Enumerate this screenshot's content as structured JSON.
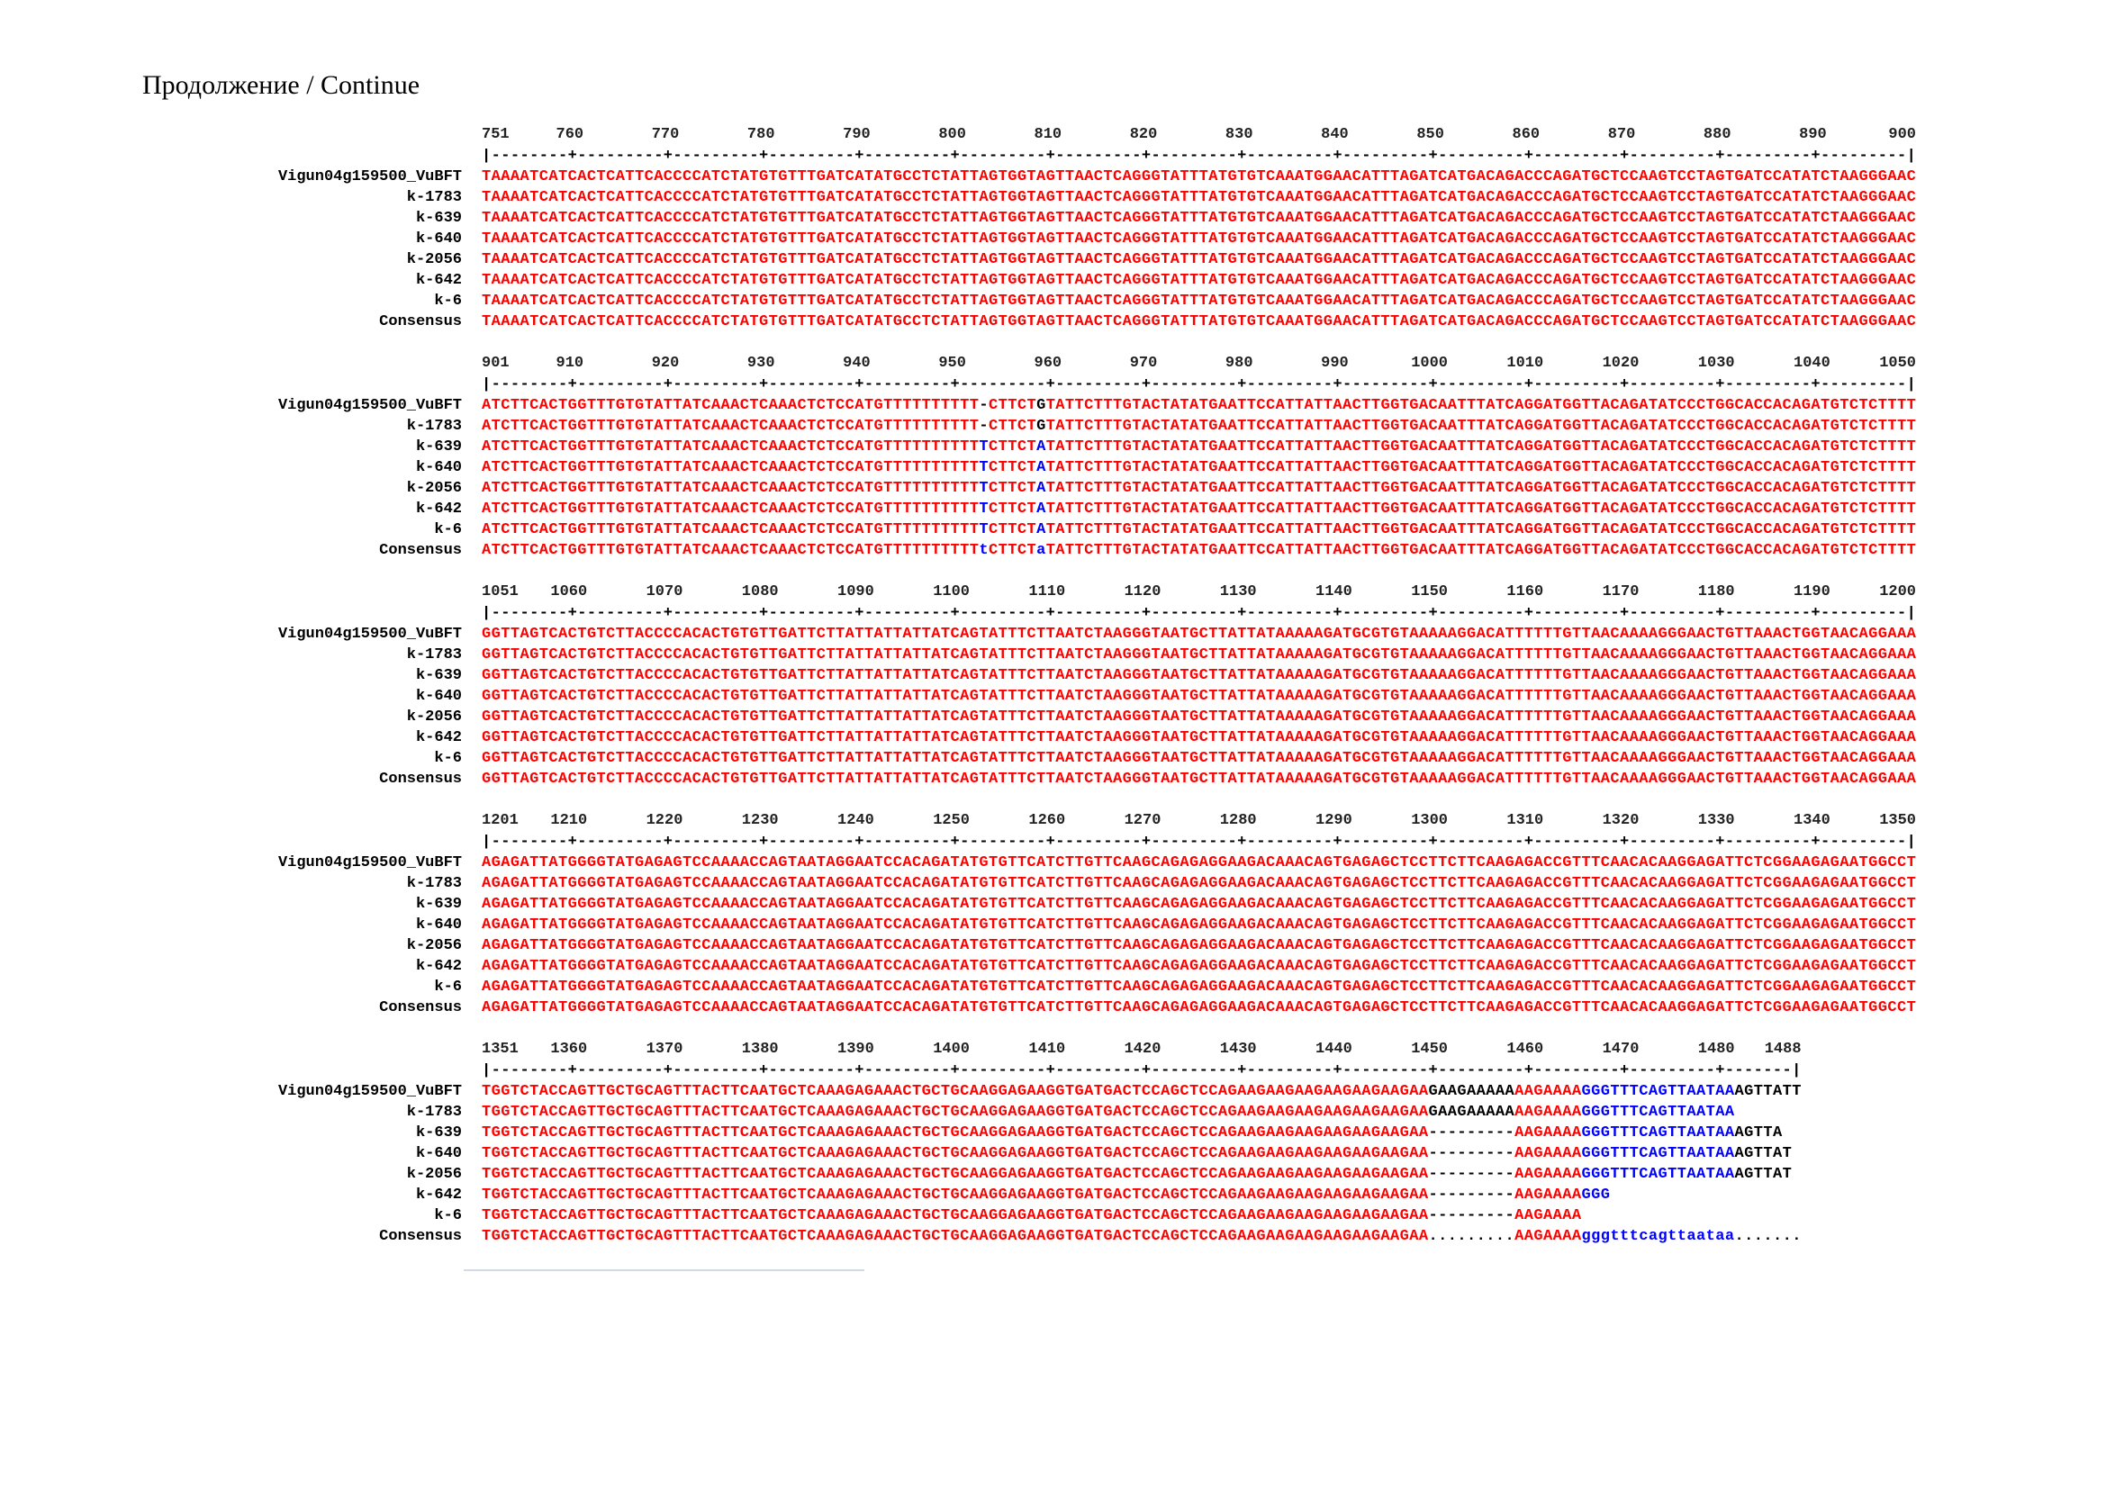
{
  "header": "Продолжение / Continue",
  "colors": {
    "r": "#ff0000",
    "b": "#0000ff",
    "k": "#000000"
  },
  "names": [
    "Vigun04g159500_VuBFT",
    "k-1783",
    "k-639",
    "k-640",
    "k-2056",
    "k-642",
    "k-6",
    "Consensus"
  ],
  "blocks": [
    {
      "start": 751,
      "end": 900,
      "tick_labels": [
        "751",
        "760",
        "770",
        "780",
        "790",
        "800",
        "810",
        "820",
        "830",
        "840",
        "850",
        "860",
        "870",
        "880",
        "890",
        "900"
      ],
      "rows": [
        [
          [
            "TAAAATCATCACTCATTCACCCCATCTATGTGTTTGATCATATGCCTCTATTAGTGGTAGTTAACTCAGGGTATTTATGTGTCAAATGGAACATTTAGATCATGACAGACCCAGATGCTCCAAGTCCTAGTGATCCATATCTAAGGGAAC",
            "r"
          ]
        ],
        [
          [
            "TAAAATCATCACTCATTCACCCCATCTATGTGTTTGATCATATGCCTCTATTAGTGGTAGTTAACTCAGGGTATTTATGTGTCAAATGGAACATTTAGATCATGACAGACCCAGATGCTCCAAGTCCTAGTGATCCATATCTAAGGGAAC",
            "r"
          ]
        ],
        [
          [
            "TAAAATCATCACTCATTCACCCCATCTATGTGTTTGATCATATGCCTCTATTAGTGGTAGTTAACTCAGGGTATTTATGTGTCAAATGGAACATTTAGATCATGACAGACCCAGATGCTCCAAGTCCTAGTGATCCATATCTAAGGGAAC",
            "r"
          ]
        ],
        [
          [
            "TAAAATCATCACTCATTCACCCCATCTATGTGTTTGATCATATGCCTCTATTAGTGGTAGTTAACTCAGGGTATTTATGTGTCAAATGGAACATTTAGATCATGACAGACCCAGATGCTCCAAGTCCTAGTGATCCATATCTAAGGGAAC",
            "r"
          ]
        ],
        [
          [
            "TAAAATCATCACTCATTCACCCCATCTATGTGTTTGATCATATGCCTCTATTAGTGGTAGTTAACTCAGGGTATTTATGTGTCAAATGGAACATTTAGATCATGACAGACCCAGATGCTCCAAGTCCTAGTGATCCATATCTAAGGGAAC",
            "r"
          ]
        ],
        [
          [
            "TAAAATCATCACTCATTCACCCCATCTATGTGTTTGATCATATGCCTCTATTAGTGGTAGTTAACTCAGGGTATTTATGTGTCAAATGGAACATTTAGATCATGACAGACCCAGATGCTCCAAGTCCTAGTGATCCATATCTAAGGGAAC",
            "r"
          ]
        ],
        [
          [
            "TAAAATCATCACTCATTCACCCCATCTATGTGTTTGATCATATGCCTCTATTAGTGGTAGTTAACTCAGGGTATTTATGTGTCAAATGGAACATTTAGATCATGACAGACCCAGATGCTCCAAGTCCTAGTGATCCATATCTAAGGGAAC",
            "r"
          ]
        ],
        [
          [
            "TAAAATCATCACTCATTCACCCCATCTATGTGTTTGATCATATGCCTCTATTAGTGGTAGTTAACTCAGGGTATTTATGTGTCAAATGGAACATTTAGATCATGACAGACCCAGATGCTCCAAGTCCTAGTGATCCATATCTAAGGGAAC",
            "r"
          ]
        ]
      ]
    },
    {
      "start": 901,
      "end": 1050,
      "tick_labels": [
        "901",
        "910",
        "920",
        "930",
        "940",
        "950",
        "960",
        "970",
        "980",
        "990",
        "1000",
        "1010",
        "1020",
        "1030",
        "1040",
        "1050"
      ],
      "rows": [
        [
          [
            "ATCTTCACTGGTTTGTGTATTATCAAACTCAAACTCTCCATGTTTTTTTTTT",
            "r"
          ],
          [
            "-",
            "k"
          ],
          [
            "CTTCT",
            "r"
          ],
          [
            "G",
            "k"
          ],
          [
            "TATTCTTTGTACTATATGAATTCCATTATTAACTTGGTGACAATTTATCAGGATGGTTACAGATATCCCTGGCACCACAGATGTCTCTTTT",
            "r"
          ]
        ],
        [
          [
            "ATCTTCACTGGTTTGTGTATTATCAAACTCAAACTCTCCATGTTTTTTTTTT",
            "r"
          ],
          [
            "-",
            "k"
          ],
          [
            "CTTCT",
            "r"
          ],
          [
            "G",
            "k"
          ],
          [
            "TATTCTTTGTACTATATGAATTCCATTATTAACTTGGTGACAATTTATCAGGATGGTTACAGATATCCCTGGCACCACAGATGTCTCTTTT",
            "r"
          ]
        ],
        [
          [
            "ATCTTCACTGGTTTGTGTATTATCAAACTCAAACTCTCCATGTTTTTTTTTT",
            "r"
          ],
          [
            "T",
            "b"
          ],
          [
            "CTTCT",
            "r"
          ],
          [
            "A",
            "b"
          ],
          [
            "TATTCTTTGTACTATATGAATTCCATTATTAACTTGGTGACAATTTATCAGGATGGTTACAGATATCCCTGGCACCACAGATGTCTCTTTT",
            "r"
          ]
        ],
        [
          [
            "ATCTTCACTGGTTTGTGTATTATCAAACTCAAACTCTCCATGTTTTTTTTTT",
            "r"
          ],
          [
            "T",
            "b"
          ],
          [
            "CTTCT",
            "r"
          ],
          [
            "A",
            "b"
          ],
          [
            "TATTCTTTGTACTATATGAATTCCATTATTAACTTGGTGACAATTTATCAGGATGGTTACAGATATCCCTGGCACCACAGATGTCTCTTTT",
            "r"
          ]
        ],
        [
          [
            "ATCTTCACTGGTTTGTGTATTATCAAACTCAAACTCTCCATGTTTTTTTTTT",
            "r"
          ],
          [
            "T",
            "b"
          ],
          [
            "CTTCT",
            "r"
          ],
          [
            "A",
            "b"
          ],
          [
            "TATTCTTTGTACTATATGAATTCCATTATTAACTTGGTGACAATTTATCAGGATGGTTACAGATATCCCTGGCACCACAGATGTCTCTTTT",
            "r"
          ]
        ],
        [
          [
            "ATCTTCACTGGTTTGTGTATTATCAAACTCAAACTCTCCATGTTTTTTTTTT",
            "r"
          ],
          [
            "T",
            "b"
          ],
          [
            "CTTCT",
            "r"
          ],
          [
            "A",
            "b"
          ],
          [
            "TATTCTTTGTACTATATGAATTCCATTATTAACTTGGTGACAATTTATCAGGATGGTTACAGATATCCCTGGCACCACAGATGTCTCTTTT",
            "r"
          ]
        ],
        [
          [
            "ATCTTCACTGGTTTGTGTATTATCAAACTCAAACTCTCCATGTTTTTTTTTT",
            "r"
          ],
          [
            "T",
            "b"
          ],
          [
            "CTTCT",
            "r"
          ],
          [
            "A",
            "b"
          ],
          [
            "TATTCTTTGTACTATATGAATTCCATTATTAACTTGGTGACAATTTATCAGGATGGTTACAGATATCCCTGGCACCACAGATGTCTCTTTT",
            "r"
          ]
        ],
        [
          [
            "ATCTTCACTGGTTTGTGTATTATCAAACTCAAACTCTCCATGTTTTTTTTTT",
            "r"
          ],
          [
            "t",
            "b"
          ],
          [
            "CTTCT",
            "r"
          ],
          [
            "a",
            "b"
          ],
          [
            "TATTCTTTGTACTATATGAATTCCATTATTAACTTGGTGACAATTTATCAGGATGGTTACAGATATCCCTGGCACCACAGATGTCTCTTTT",
            "r"
          ]
        ]
      ]
    },
    {
      "start": 1051,
      "end": 1200,
      "tick_labels": [
        "1051",
        "1060",
        "1070",
        "1080",
        "1090",
        "1100",
        "1110",
        "1120",
        "1130",
        "1140",
        "1150",
        "1160",
        "1170",
        "1180",
        "1190",
        "1200"
      ],
      "rows": [
        [
          [
            "GGTTAGTCACTGTCTTACCCCACACTGTGTTGATTCTTATTATTATTATCAGTATTTCTTAATCTAAGGGTAATGCTTATTATAAAAAGATGCGTGTAAAAAGGACATTTTTTGTTAACAAAAGGGAACTGTTAAACTGGTAACAGGAAA",
            "r"
          ]
        ],
        [
          [
            "GGTTAGTCACTGTCTTACCCCACACTGTGTTGATTCTTATTATTATTATCAGTATTTCTTAATCTAAGGGTAATGCTTATTATAAAAAGATGCGTGTAAAAAGGACATTTTTTGTTAACAAAAGGGAACTGTTAAACTGGTAACAGGAAA",
            "r"
          ]
        ],
        [
          [
            "GGTTAGTCACTGTCTTACCCCACACTGTGTTGATTCTTATTATTATTATCAGTATTTCTTAATCTAAGGGTAATGCTTATTATAAAAAGATGCGTGTAAAAAGGACATTTTTTGTTAACAAAAGGGAACTGTTAAACTGGTAACAGGAAA",
            "r"
          ]
        ],
        [
          [
            "GGTTAGTCACTGTCTTACCCCACACTGTGTTGATTCTTATTATTATTATCAGTATTTCTTAATCTAAGGGTAATGCTTATTATAAAAAGATGCGTGTAAAAAGGACATTTTTTGTTAACAAAAGGGAACTGTTAAACTGGTAACAGGAAA",
            "r"
          ]
        ],
        [
          [
            "GGTTAGTCACTGTCTTACCCCACACTGTGTTGATTCTTATTATTATTATCAGTATTTCTTAATCTAAGGGTAATGCTTATTATAAAAAGATGCGTGTAAAAAGGACATTTTTTGTTAACAAAAGGGAACTGTTAAACTGGTAACAGGAAA",
            "r"
          ]
        ],
        [
          [
            "GGTTAGTCACTGTCTTACCCCACACTGTGTTGATTCTTATTATTATTATCAGTATTTCTTAATCTAAGGGTAATGCTTATTATAAAAAGATGCGTGTAAAAAGGACATTTTTTGTTAACAAAAGGGAACTGTTAAACTGGTAACAGGAAA",
            "r"
          ]
        ],
        [
          [
            "GGTTAGTCACTGTCTTACCCCACACTGTGTTGATTCTTATTATTATTATCAGTATTTCTTAATCTAAGGGTAATGCTTATTATAAAAAGATGCGTGTAAAAAGGACATTTTTTGTTAACAAAAGGGAACTGTTAAACTGGTAACAGGAAA",
            "r"
          ]
        ],
        [
          [
            "GGTTAGTCACTGTCTTACCCCACACTGTGTTGATTCTTATTATTATTATCAGTATTTCTTAATCTAAGGGTAATGCTTATTATAAAAAGATGCGTGTAAAAAGGACATTTTTTGTTAACAAAAGGGAACTGTTAAACTGGTAACAGGAAA",
            "r"
          ]
        ]
      ]
    },
    {
      "start": 1201,
      "end": 1350,
      "tick_labels": [
        "1201",
        "1210",
        "1220",
        "1230",
        "1240",
        "1250",
        "1260",
        "1270",
        "1280",
        "1290",
        "1300",
        "1310",
        "1320",
        "1330",
        "1340",
        "1350"
      ],
      "rows": [
        [
          [
            "AGAGATTATGGGGTATGAGAGTCCAAAACCAGTAATAGGAATCCACAGATATGTGTTCATCTTGTTCAAGCAGAGAGGAAGACAAACAGTGAGAGCTCCTTCTTCAAGAGACCGTTTCAACACAAGGAGATTCTCGGAAGAGAATGGCCT",
            "r"
          ]
        ],
        [
          [
            "AGAGATTATGGGGTATGAGAGTCCAAAACCAGTAATAGGAATCCACAGATATGTGTTCATCTTGTTCAAGCAGAGAGGAAGACAAACAGTGAGAGCTCCTTCTTCAAGAGACCGTTTCAACACAAGGAGATTCTCGGAAGAGAATGGCCT",
            "r"
          ]
        ],
        [
          [
            "AGAGATTATGGGGTATGAGAGTCCAAAACCAGTAATAGGAATCCACAGATATGTGTTCATCTTGTTCAAGCAGAGAGGAAGACAAACAGTGAGAGCTCCTTCTTCAAGAGACCGTTTCAACACAAGGAGATTCTCGGAAGAGAATGGCCT",
            "r"
          ]
        ],
        [
          [
            "AGAGATTATGGGGTATGAGAGTCCAAAACCAGTAATAGGAATCCACAGATATGTGTTCATCTTGTTCAAGCAGAGAGGAAGACAAACAGTGAGAGCTCCTTCTTCAAGAGACCGTTTCAACACAAGGAGATTCTCGGAAGAGAATGGCCT",
            "r"
          ]
        ],
        [
          [
            "AGAGATTATGGGGTATGAGAGTCCAAAACCAGTAATAGGAATCCACAGATATGTGTTCATCTTGTTCAAGCAGAGAGGAAGACAAACAGTGAGAGCTCCTTCTTCAAGAGACCGTTTCAACACAAGGAGATTCTCGGAAGAGAATGGCCT",
            "r"
          ]
        ],
        [
          [
            "AGAGATTATGGGGTATGAGAGTCCAAAACCAGTAATAGGAATCCACAGATATGTGTTCATCTTGTTCAAGCAGAGAGGAAGACAAACAGTGAGAGCTCCTTCTTCAAGAGACCGTTTCAACACAAGGAGATTCTCGGAAGAGAATGGCCT",
            "r"
          ]
        ],
        [
          [
            "AGAGATTATGGGGTATGAGAGTCCAAAACCAGTAATAGGAATCCACAGATATGTGTTCATCTTGTTCAAGCAGAGAGGAAGACAAACAGTGAGAGCTCCTTCTTCAAGAGACCGTTTCAACACAAGGAGATTCTCGGAAGAGAATGGCCT",
            "r"
          ]
        ],
        [
          [
            "AGAGATTATGGGGTATGAGAGTCCAAAACCAGTAATAGGAATCCACAGATATGTGTTCATCTTGTTCAAGCAGAGAGGAAGACAAACAGTGAGAGCTCCTTCTTCAAGAGACCGTTTCAACACAAGGAGATTCTCGGAAGAGAATGGCCT",
            "r"
          ]
        ]
      ]
    },
    {
      "start": 1351,
      "end": 1488,
      "tick_labels": [
        "1351",
        "1360",
        "1370",
        "1380",
        "1390",
        "1400",
        "1410",
        "1420",
        "1430",
        "1440",
        "1450",
        "1460",
        "1470",
        "1480",
        "1488"
      ],
      "rows": [
        [
          [
            "TGGTCTACCAGTTGCTGCAGTTTACTTCAATGCTCAAAGAGAAACTGCTGCAAGGAGAAGGTGATGACTCCAGCTCCAGAAGAAGAAGAAGAAGAAGAA",
            "r"
          ],
          [
            "GAAGAAAAA",
            "k"
          ],
          [
            "AAGAAAA",
            "r"
          ],
          [
            "GGGTTTCAGTTAATAA",
            "b"
          ],
          [
            "AGTTATT",
            "k"
          ]
        ],
        [
          [
            "TGGTCTACCAGTTGCTGCAGTTTACTTCAATGCTCAAAGAGAAACTGCTGCAAGGAGAAGGTGATGACTCCAGCTCCAGAAGAAGAAGAAGAAGAAGAA",
            "r"
          ],
          [
            "GAAGAAAAA",
            "k"
          ],
          [
            "AAGAAAA",
            "r"
          ],
          [
            "GGGTTTCAGTTAATAA",
            "b"
          ]
        ],
        [
          [
            "TGGTCTACCAGTTGCTGCAGTTTACTTCAATGCTCAAAGAGAAACTGCTGCAAGGAGAAGGTGATGACTCCAGCTCCAGAAGAAGAAGAAGAAGAAGAA",
            "r"
          ],
          [
            "---------",
            "k"
          ],
          [
            "AAGAAAA",
            "r"
          ],
          [
            "GGGTTTCAGTTAATAA",
            "b"
          ],
          [
            "AGTTA",
            "k"
          ]
        ],
        [
          [
            "TGGTCTACCAGTTGCTGCAGTTTACTTCAATGCTCAAAGAGAAACTGCTGCAAGGAGAAGGTGATGACTCCAGCTCCAGAAGAAGAAGAAGAAGAAGAA",
            "r"
          ],
          [
            "---------",
            "k"
          ],
          [
            "AAGAAAA",
            "r"
          ],
          [
            "GGGTTTCAGTTAATAA",
            "b"
          ],
          [
            "AGTTAT",
            "k"
          ]
        ],
        [
          [
            "TGGTCTACCAGTTGCTGCAGTTTACTTCAATGCTCAAAGAGAAACTGCTGCAAGGAGAAGGTGATGACTCCAGCTCCAGAAGAAGAAGAAGAAGAAGAA",
            "r"
          ],
          [
            "---------",
            "k"
          ],
          [
            "AAGAAAA",
            "r"
          ],
          [
            "GGGTTTCAGTTAATAA",
            "b"
          ],
          [
            "AGTTAT",
            "k"
          ]
        ],
        [
          [
            "TGGTCTACCAGTTGCTGCAGTTTACTTCAATGCTCAAAGAGAAACTGCTGCAAGGAGAAGGTGATGACTCCAGCTCCAGAAGAAGAAGAAGAAGAAGAA",
            "r"
          ],
          [
            "---------",
            "k"
          ],
          [
            "AAGAAAA",
            "r"
          ],
          [
            "GGG",
            "b"
          ]
        ],
        [
          [
            "TGGTCTACCAGTTGCTGCAGTTTACTTCAATGCTCAAAGAGAAACTGCTGCAAGGAGAAGGTGATGACTCCAGCTCCAGAAGAAGAAGAAGAAGAAGAA",
            "r"
          ],
          [
            "---------",
            "k"
          ],
          [
            "AAGAAAA",
            "r"
          ]
        ],
        [
          [
            "TGGTCTACCAGTTGCTGCAGTTTACTTCAATGCTCAAAGAGAAACTGCTGCAAGGAGAAGGTGATGACTCCAGCTCCAGAAGAAGAAGAAGAAGAAGAA",
            "r"
          ],
          [
            ".........",
            "k"
          ],
          [
            "AAGAAAA",
            "r"
          ],
          [
            "gggtttcagttaataa",
            "b"
          ],
          [
            ".......",
            "k"
          ]
        ]
      ]
    }
  ]
}
